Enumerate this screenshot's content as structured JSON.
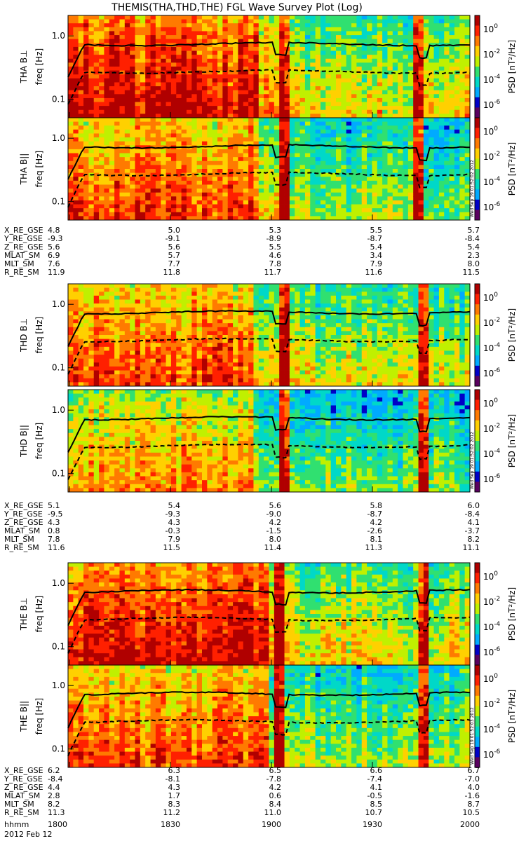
{
  "chart_data": {
    "type": "heatmap",
    "title": "THEMIS(THA,THD,THE) FGL Wave Survey Plot (Log)",
    "date": "2012 Feb 12",
    "time_label": "hhmm",
    "time_ticks": [
      "1800",
      "1830",
      "1900",
      "1930",
      "2000"
    ],
    "y_ticks": [
      "1.0",
      "0.1"
    ],
    "colorbar": {
      "label": "PSD [nT²/Hz]",
      "exponents": [
        "0",
        "-2",
        "-4",
        "-6"
      ],
      "range_log": [
        -6.5,
        1.5
      ],
      "colors": [
        "#5a0060",
        "#0000c8",
        "#00aaff",
        "#00d8c8",
        "#30e070",
        "#c0f000",
        "#ffd000",
        "#ff7a00",
        "#ff2000",
        "#b00000"
      ]
    },
    "probes": [
      {
        "id": "THA",
        "panels": [
          {
            "label": "THA B⊥",
            "ylabel": "freq [Hz]",
            "stamp": ""
          },
          {
            "label": "THA B||",
            "ylabel": "freq [Hz]",
            "stamp": "Wed Sep 19 01:52:02 2012"
          }
        ],
        "ephemeris": [
          {
            "name": "X_RE_GSE",
            "values": [
              "4.8",
              "5.0",
              "5.3",
              "5.5",
              "5.7"
            ]
          },
          {
            "name": "Y_RE_GSE",
            "values": [
              "-9.3",
              "-9.1",
              "-8.9",
              "-8.7",
              "-8.4"
            ]
          },
          {
            "name": "Z_RE_GSE",
            "values": [
              "5.6",
              "5.6",
              "5.5",
              "5.4",
              "5.4"
            ]
          },
          {
            "name": "MLAT_SM",
            "values": [
              "6.9",
              "5.7",
              "4.6",
              "3.4",
              "2.3"
            ]
          },
          {
            "name": "MLT_SM",
            "values": [
              "7.6",
              "7.7",
              "7.8",
              "7.9",
              "8.0"
            ]
          },
          {
            "name": "R_RE_SM",
            "values": [
              "11.9",
              "11.8",
              "11.7",
              "11.6",
              "11.5"
            ]
          }
        ]
      },
      {
        "id": "THD",
        "panels": [
          {
            "label": "THD B⊥",
            "ylabel": "freq [Hz]",
            "stamp": ""
          },
          {
            "label": "THD B||",
            "ylabel": "freq [Hz]",
            "stamp": "Wed Sep 19 01:52:02 2012"
          }
        ],
        "ephemeris": [
          {
            "name": "X_RE_GSE",
            "values": [
              "5.1",
              "5.4",
              "5.6",
              "5.8",
              "6.0"
            ]
          },
          {
            "name": "Y_RE_GSE",
            "values": [
              "-9.5",
              "-9.3",
              "-9.0",
              "-8.7",
              "-8.4"
            ]
          },
          {
            "name": "Z_RE_GSE",
            "values": [
              "4.3",
              "4.3",
              "4.2",
              "4.2",
              "4.1"
            ]
          },
          {
            "name": "MLAT_SM",
            "values": [
              "0.8",
              "-0.3",
              "-1.5",
              "-2.6",
              "-3.7"
            ]
          },
          {
            "name": "MLT_SM",
            "values": [
              "7.8",
              "7.9",
              "8.0",
              "8.1",
              "8.2"
            ]
          },
          {
            "name": "R_RE_SM",
            "values": [
              "11.6",
              "11.5",
              "11.4",
              "11.3",
              "11.1"
            ]
          }
        ]
      },
      {
        "id": "THE",
        "panels": [
          {
            "label": "THE B⊥",
            "ylabel": "freq [Hz]",
            "stamp": ""
          },
          {
            "label": "THE B||",
            "ylabel": "freq [Hz]",
            "stamp": "Wed Sep 19 01:52:03 2012"
          }
        ],
        "ephemeris": [
          {
            "name": "X_RE_GSE",
            "values": [
              "6.2",
              "6.3",
              "6.5",
              "6.6",
              "6.7"
            ]
          },
          {
            "name": "Y_RE_GSE",
            "values": [
              "-8.4",
              "-8.1",
              "-7.8",
              "-7.4",
              "-7.0"
            ]
          },
          {
            "name": "Z_RE_GSE",
            "values": [
              "4.4",
              "4.3",
              "4.2",
              "4.1",
              "4.0"
            ]
          },
          {
            "name": "MLAT_SM",
            "values": [
              "2.8",
              "1.7",
              "0.6",
              "-0.5",
              "-1.6"
            ]
          },
          {
            "name": "MLT_SM",
            "values": [
              "8.2",
              "8.3",
              "8.4",
              "8.5",
              "8.7"
            ]
          },
          {
            "name": "R_RE_SM",
            "values": [
              "11.3",
              "11.2",
              "11.0",
              "10.7",
              "10.5"
            ]
          }
        ]
      }
    ]
  }
}
